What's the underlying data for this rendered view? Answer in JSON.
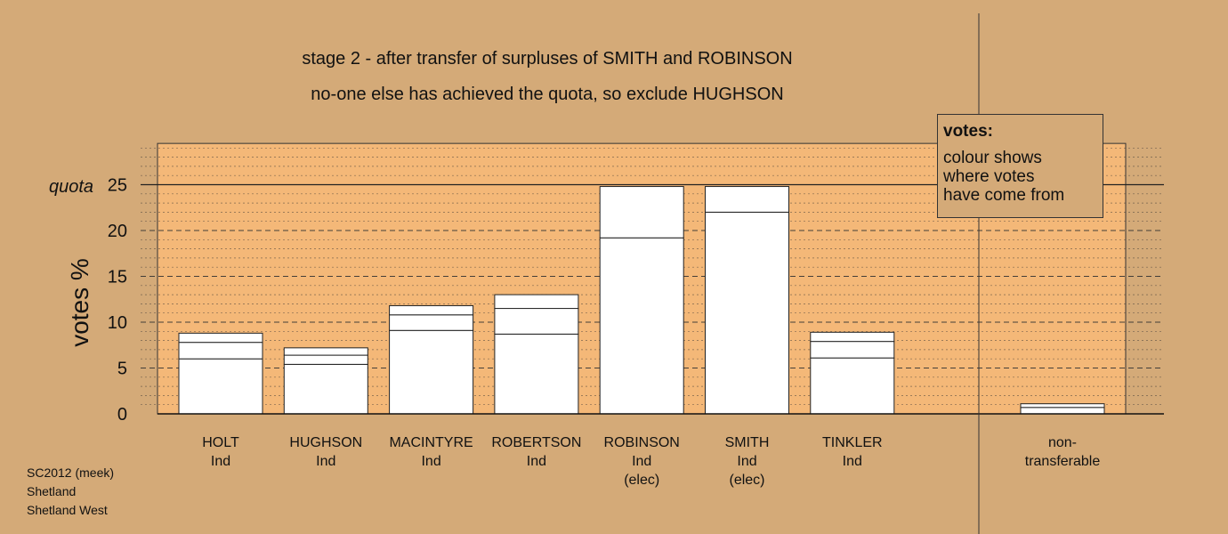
{
  "title": {
    "line1": "stage 2 - after transfer of surpluses of SMITH and ROBINSON",
    "line2": "no-one else has achieved the quota, so exclude HUGHSON"
  },
  "legend": {
    "title": "votes:",
    "lines": [
      "colour shows",
      "where votes",
      "have come from"
    ]
  },
  "footer": [
    "SC2012 (meek)",
    "Shetland",
    "Shetland West"
  ],
  "colors": {
    "background": "#d4aa78",
    "plot_area": "#f4b878",
    "bar": "#ffffff",
    "grid": "#333333"
  },
  "chart_data": {
    "type": "bar",
    "ylabel": "votes %",
    "quota_label": "quota",
    "quota_value": 25,
    "ylim": [
      0,
      29.5
    ],
    "yticks": [
      0,
      5,
      10,
      15,
      20,
      25
    ],
    "grid": true,
    "categories": [
      {
        "lines": [
          "HOLT",
          "Ind"
        ],
        "segments": [
          6.0,
          1.8,
          1.0
        ],
        "total": 8.8
      },
      {
        "lines": [
          "HUGHSON",
          "Ind"
        ],
        "segments": [
          5.4,
          1.0,
          0.8
        ],
        "total": 7.2
      },
      {
        "lines": [
          "MACINTYRE",
          "Ind"
        ],
        "segments": [
          9.1,
          1.7,
          1.0
        ],
        "total": 11.8
      },
      {
        "lines": [
          "ROBERTSON",
          "Ind"
        ],
        "segments": [
          8.7,
          2.8,
          1.5
        ],
        "total": 13.0
      },
      {
        "lines": [
          "ROBINSON",
          "Ind",
          "(elec)"
        ],
        "segments": [
          19.2,
          5.6
        ],
        "total": 24.8
      },
      {
        "lines": [
          "SMITH",
          "Ind",
          "(elec)"
        ],
        "segments": [
          22.0,
          2.8
        ],
        "total": 24.8
      },
      {
        "lines": [
          "TINKLER",
          "Ind"
        ],
        "segments": [
          6.1,
          1.8,
          1.0
        ],
        "total": 8.9
      }
    ],
    "non_transferable": {
      "lines": [
        "non-",
        "transferable"
      ],
      "segments": [
        0.7,
        0.4
      ],
      "total": 1.1
    }
  }
}
